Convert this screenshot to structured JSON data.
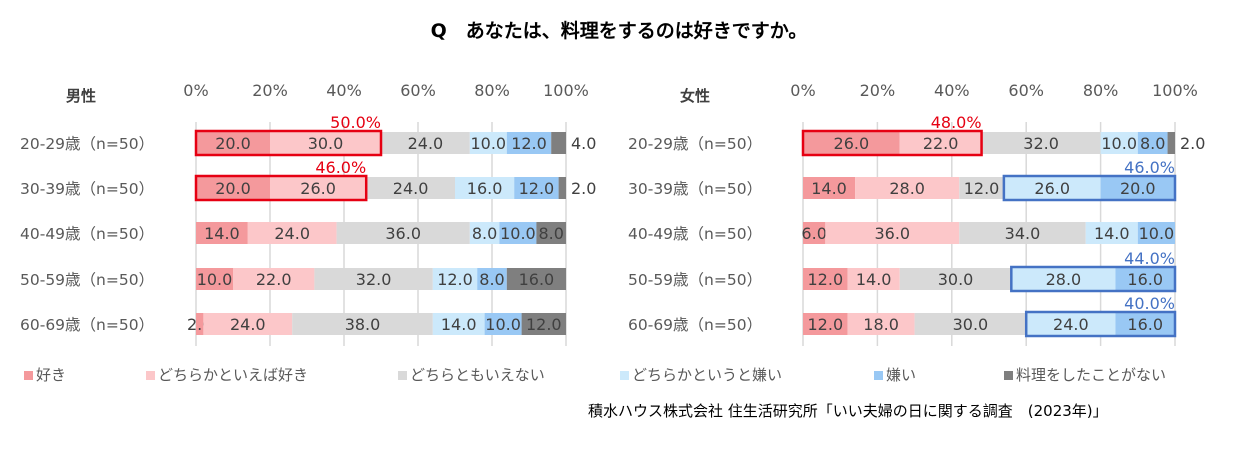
{
  "title": "Q　あなたは、料理をするのは好きですか。",
  "source": "積水ハウス株式会社 住生活研究所「いい夫婦の日に関する調査　(2023年)」",
  "colors": {
    "like": "#f4999c",
    "somewhat_like": "#fcc7c9",
    "neither": "#d9d9d9",
    "somewhat_dislike": "#cce9fb",
    "dislike": "#99c8f4",
    "never": "#7f7f7f",
    "like_highlight": "#e60012",
    "dislike_highlight": "#4472c4"
  },
  "legend": [
    {
      "label": "好き",
      "color": "#f4999c"
    },
    {
      "label": "どちらかといえば好き",
      "color": "#fcc7c9"
    },
    {
      "label": "どちらともいえない",
      "color": "#d9d9d9"
    },
    {
      "label": "どちらかというと嫌い",
      "color": "#cce9fb"
    },
    {
      "label": "嫌い",
      "color": "#99c8f4"
    },
    {
      "label": "料理をしたことがない",
      "color": "#7f7f7f"
    }
  ],
  "chart_data": [
    {
      "type": "bar",
      "stacked": "100%",
      "orientation": "horizontal",
      "title": "男性",
      "xlim": [
        0,
        100
      ],
      "x_ticks": [
        "0%",
        "20%",
        "40%",
        "60%",
        "80%",
        "100%"
      ],
      "grid": true,
      "legend_position": "bottom",
      "categories": [
        "20-29歳（n=50）",
        "30-39歳（n=50）",
        "40-49歳（n=50）",
        "50-59歳（n=50）",
        "60-69歳（n=50）"
      ],
      "series": [
        {
          "name": "好き",
          "values": [
            20.0,
            20.0,
            14.0,
            10.0,
            2.0
          ]
        },
        {
          "name": "どちらかといえば好き",
          "values": [
            30.0,
            26.0,
            24.0,
            22.0,
            24.0
          ]
        },
        {
          "name": "どちらともいえない",
          "values": [
            24.0,
            24.0,
            36.0,
            32.0,
            38.0
          ]
        },
        {
          "name": "どちらかというと嫌い",
          "values": [
            10.0,
            16.0,
            8.0,
            12.0,
            14.0
          ]
        },
        {
          "name": "嫌い",
          "values": [
            12.0,
            12.0,
            10.0,
            8.0,
            10.0
          ]
        },
        {
          "name": "料理をしたことがない",
          "values": [
            4.0,
            2.0,
            8.0,
            16.0,
            12.0
          ]
        }
      ],
      "annotations": [
        {
          "row": 0,
          "type": "like",
          "label": "50.0%"
        },
        {
          "row": 1,
          "type": "like",
          "label": "46.0%"
        }
      ]
    },
    {
      "type": "bar",
      "stacked": "100%",
      "orientation": "horizontal",
      "title": "女性",
      "xlim": [
        0,
        100
      ],
      "x_ticks": [
        "0%",
        "20%",
        "40%",
        "60%",
        "80%",
        "100%"
      ],
      "grid": true,
      "legend_position": "bottom",
      "categories": [
        "20-29歳（n=50）",
        "30-39歳（n=50）",
        "40-49歳（n=50）",
        "50-59歳（n=50）",
        "60-69歳（n=50）"
      ],
      "series": [
        {
          "name": "好き",
          "values": [
            26.0,
            14.0,
            6.0,
            12.0,
            12.0
          ]
        },
        {
          "name": "どちらかといえば好き",
          "values": [
            22.0,
            28.0,
            36.0,
            14.0,
            18.0
          ]
        },
        {
          "name": "どちらともいえない",
          "values": [
            32.0,
            12.0,
            34.0,
            30.0,
            30.0
          ]
        },
        {
          "name": "どちらかというと嫌い",
          "values": [
            10.0,
            26.0,
            14.0,
            28.0,
            24.0
          ]
        },
        {
          "name": "嫌い",
          "values": [
            8.0,
            20.0,
            10.0,
            16.0,
            16.0
          ]
        },
        {
          "name": "料理をしたことがない",
          "values": [
            2.0,
            0,
            0,
            0,
            0
          ]
        }
      ],
      "annotations": [
        {
          "row": 0,
          "type": "like",
          "label": "48.0%"
        },
        {
          "row": 1,
          "type": "dislike",
          "label": "46.0%"
        },
        {
          "row": 3,
          "type": "dislike",
          "label": "44.0%"
        },
        {
          "row": 4,
          "type": "dislike",
          "label": "40.0%"
        }
      ]
    }
  ]
}
